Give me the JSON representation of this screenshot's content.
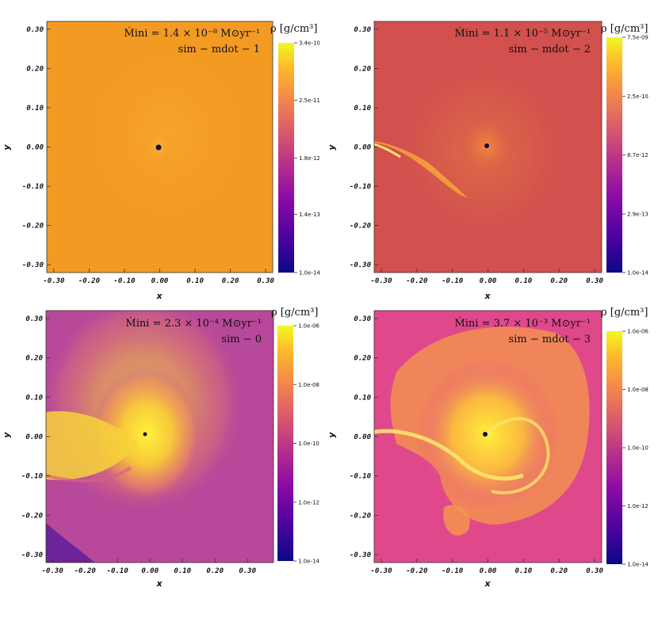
{
  "chart_data": [
    {
      "type": "heatmap",
      "title": "",
      "xlabel": "x",
      "ylabel": "y",
      "xlim": [
        -0.32,
        0.32
      ],
      "ylim": [
        -0.32,
        0.32
      ],
      "xticks": [
        "-0.30",
        "-0.20",
        "-0.10",
        "0.00",
        "0.10",
        "0.20",
        "0.30"
      ],
      "yticks": [
        "0.30",
        "0.20",
        "0.10",
        "0.00",
        "-0.10",
        "-0.20",
        "-0.30"
      ],
      "annotation_mdot": "Ṁini = 1.4 × 10⁻⁸ M⊙yr⁻¹",
      "annotation_sim": "sim − mdot − 1",
      "colorbar_label": "ρ [g/cm³]",
      "colorbar_ticks": [
        "3.4e-10",
        "2.5e-11",
        "1.8e-12",
        "1.4e-13",
        "1.0e-14"
      ],
      "colorbar_range": [
        "1.0e-14",
        "3.4e-10"
      ],
      "background_color": "#f39a22"
    },
    {
      "type": "heatmap",
      "title": "",
      "xlabel": "x",
      "ylabel": "y",
      "xlim": [
        -0.32,
        0.32
      ],
      "ylim": [
        -0.32,
        0.32
      ],
      "xticks": [
        "-0.30",
        "-0.20",
        "-0.10",
        "0.00",
        "0.10",
        "0.20",
        "0.30"
      ],
      "yticks": [
        "0.30",
        "0.20",
        "0.10",
        "0.00",
        "-0.10",
        "-0.20",
        "-0.30"
      ],
      "annotation_mdot": "Ṁini = 1.1 × 10⁻⁵ M⊙yr⁻¹",
      "annotation_sim": "sim − mdot − 2",
      "colorbar_label": "ρ [g/cm³]",
      "colorbar_ticks": [
        "7.5e-09",
        "2.5e-10",
        "8.7e-12",
        "2.9e-13",
        "1.0e-14"
      ],
      "colorbar_range": [
        "1.0e-14",
        "7.5e-09"
      ],
      "background_color": "#d2504e"
    },
    {
      "type": "heatmap",
      "title": "",
      "xlabel": "x",
      "ylabel": "y",
      "xlim": [
        -0.32,
        0.38
      ],
      "ylim": [
        -0.32,
        0.32
      ],
      "xticks": [
        "-0.30",
        "-0.20",
        "-0.10",
        "0.00",
        "0.10",
        "0.20",
        "0.30"
      ],
      "yticks": [
        "0.30",
        "0.20",
        "0.10",
        "0.00",
        "-0.10",
        "-0.20",
        "-0.30"
      ],
      "annotation_mdot": "Ṁini = 2.3 × 10⁻⁴ M⊙yr⁻¹",
      "annotation_sim": "sim − 0",
      "colorbar_label": "ρ [g/cm³]",
      "colorbar_ticks": [
        "1.0e-06",
        "1.0e-08",
        "1.0e-10",
        "1.0e-12",
        "1.0e-14"
      ],
      "colorbar_range": [
        "1.0e-14",
        "1.0e-06"
      ],
      "background_color": "#b8489a"
    },
    {
      "type": "heatmap",
      "title": "",
      "xlabel": "x",
      "ylabel": "y",
      "xlim": [
        -0.32,
        0.32
      ],
      "ylim": [
        -0.32,
        0.32
      ],
      "xticks": [
        "-0.30",
        "-0.20",
        "-0.10",
        "0.00",
        "0.10",
        "0.20",
        "0.30"
      ],
      "yticks": [
        "0.30",
        "0.20",
        "0.10",
        "0.00",
        "-0.10",
        "-0.20",
        "-0.30"
      ],
      "annotation_mdot": "Ṁini = 3.7 × 10⁻³ M⊙yr⁻¹",
      "annotation_sim": "sim − mdot − 3",
      "colorbar_label": "ρ [g/cm³]",
      "colorbar_ticks": [
        "1.0e-06",
        "1.0e-08",
        "1.0e-10",
        "1.0e-12",
        "1.0e-14"
      ],
      "colorbar_range": [
        "1.0e-14",
        "1.0e-06"
      ],
      "background_color": "#e0488c"
    }
  ]
}
